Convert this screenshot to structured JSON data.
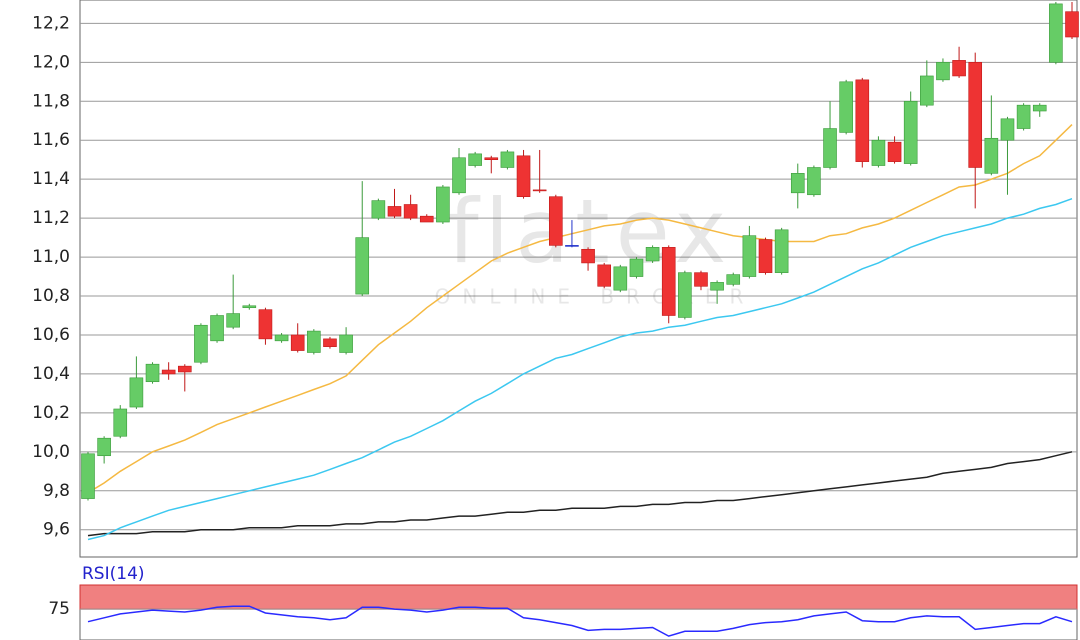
{
  "chart_data": [
    {
      "type": "candlestick",
      "watermark": "flatex",
      "watermark_sub": "ONLINE BROKER",
      "open": [
        9.76,
        9.98,
        10.08,
        10.23,
        10.36,
        10.42,
        10.44,
        10.46,
        10.57,
        10.64,
        10.74,
        10.73,
        10.57,
        10.6,
        10.51,
        10.58,
        10.51,
        10.81,
        11.2,
        11.26,
        11.27,
        11.21,
        11.18,
        11.33,
        11.47,
        11.51,
        11.46,
        11.52,
        11.345,
        11.31,
        11.06,
        11.04,
        10.96,
        10.83,
        10.9,
        10.98,
        11.05,
        10.69,
        10.92,
        10.83,
        10.86,
        10.9,
        11.09,
        10.92,
        11.33,
        11.32,
        11.46,
        11.64,
        11.91,
        11.47,
        11.59,
        11.48,
        11.78,
        11.91,
        12.01,
        12.0,
        11.43,
        11.6,
        11.66,
        11.75,
        12.0,
        12.26
      ],
      "high": [
        10.0,
        10.08,
        10.24,
        10.49,
        10.46,
        10.46,
        10.45,
        10.66,
        10.71,
        10.91,
        10.76,
        10.74,
        10.61,
        10.66,
        10.63,
        10.59,
        10.64,
        11.39,
        11.3,
        11.35,
        11.32,
        11.22,
        11.37,
        11.56,
        11.54,
        11.52,
        11.55,
        11.55,
        11.55,
        11.32,
        11.19,
        11.05,
        10.97,
        10.96,
        11.0,
        11.06,
        11.06,
        10.93,
        10.93,
        10.88,
        10.92,
        11.16,
        11.1,
        11.15,
        11.48,
        11.47,
        11.8,
        11.91,
        11.92,
        11.62,
        11.62,
        11.85,
        12.01,
        12.02,
        12.08,
        12.05,
        11.83,
        11.72,
        11.79,
        11.79,
        12.31,
        12.31
      ],
      "low": [
        9.75,
        9.94,
        10.07,
        10.22,
        10.35,
        10.37,
        10.31,
        10.45,
        10.56,
        10.63,
        10.73,
        10.55,
        10.56,
        10.51,
        10.5,
        10.53,
        10.5,
        10.8,
        11.19,
        11.2,
        11.19,
        11.18,
        11.17,
        11.32,
        11.46,
        11.43,
        11.45,
        11.3,
        11.33,
        11.05,
        11.05,
        10.93,
        10.84,
        10.82,
        10.89,
        10.97,
        10.66,
        10.68,
        10.83,
        10.76,
        10.85,
        10.89,
        10.91,
        10.91,
        11.25,
        11.31,
        11.45,
        11.63,
        11.46,
        11.46,
        11.48,
        11.47,
        11.77,
        11.9,
        11.92,
        11.25,
        11.42,
        11.32,
        11.65,
        11.72,
        11.99,
        12.12
      ],
      "close": [
        9.99,
        10.07,
        10.22,
        10.38,
        10.45,
        10.4,
        10.41,
        10.65,
        10.7,
        10.71,
        10.75,
        10.58,
        10.6,
        10.52,
        10.62,
        10.54,
        10.6,
        11.1,
        11.29,
        11.21,
        11.2,
        11.18,
        11.36,
        11.51,
        11.53,
        11.5,
        11.54,
        11.31,
        11.34,
        11.06,
        11.06,
        10.97,
        10.85,
        10.95,
        10.99,
        11.05,
        10.7,
        10.92,
        10.85,
        10.87,
        10.91,
        11.11,
        10.92,
        11.14,
        11.43,
        11.46,
        11.66,
        11.9,
        11.49,
        11.6,
        11.49,
        11.8,
        11.93,
        12.0,
        11.93,
        11.46,
        11.61,
        11.71,
        11.78,
        11.78,
        12.3,
        12.13
      ],
      "up_color": "#66cc66",
      "down_color": "#ee3333",
      "flat_color": "#2233cc",
      "overlays": [
        {
          "color": "#f5b942",
          "values": [
            9.79,
            9.84,
            9.9,
            9.95,
            10.0,
            10.03,
            10.06,
            10.1,
            10.14,
            10.17,
            10.2,
            10.23,
            10.26,
            10.29,
            10.32,
            10.35,
            10.39,
            10.47,
            10.55,
            10.61,
            10.67,
            10.74,
            10.8,
            10.86,
            10.92,
            10.98,
            11.02,
            11.05,
            11.08,
            11.1,
            11.12,
            11.14,
            11.16,
            11.17,
            11.19,
            11.2,
            11.19,
            11.17,
            11.15,
            11.13,
            11.11,
            11.1,
            11.09,
            11.08,
            11.08,
            11.08,
            11.11,
            11.12,
            11.15,
            11.17,
            11.2,
            11.24,
            11.28,
            11.32,
            11.36,
            11.37,
            11.4,
            11.43,
            11.48,
            11.52,
            11.6,
            11.68
          ]
        },
        {
          "color": "#3cc8f0",
          "values": [
            9.55,
            9.57,
            9.61,
            9.64,
            9.67,
            9.7,
            9.72,
            9.74,
            9.76,
            9.78,
            9.8,
            9.82,
            9.84,
            9.86,
            9.88,
            9.91,
            9.94,
            9.97,
            10.01,
            10.05,
            10.08,
            10.12,
            10.16,
            10.21,
            10.26,
            10.3,
            10.35,
            10.4,
            10.44,
            10.48,
            10.5,
            10.53,
            10.56,
            10.59,
            10.61,
            10.62,
            10.64,
            10.65,
            10.67,
            10.69,
            10.7,
            10.72,
            10.74,
            10.76,
            10.79,
            10.82,
            10.86,
            10.9,
            10.94,
            10.97,
            11.01,
            11.05,
            11.08,
            11.11,
            11.13,
            11.15,
            11.17,
            11.2,
            11.22,
            11.25,
            11.27,
            11.3
          ]
        },
        {
          "color": "#222222",
          "values": [
            9.57,
            9.58,
            9.58,
            9.58,
            9.59,
            9.59,
            9.59,
            9.6,
            9.6,
            9.6,
            9.61,
            9.61,
            9.61,
            9.62,
            9.62,
            9.62,
            9.63,
            9.63,
            9.64,
            9.64,
            9.65,
            9.65,
            9.66,
            9.67,
            9.67,
            9.68,
            9.69,
            9.69,
            9.7,
            9.7,
            9.71,
            9.71,
            9.71,
            9.72,
            9.72,
            9.73,
            9.73,
            9.74,
            9.74,
            9.75,
            9.75,
            9.76,
            9.77,
            9.78,
            9.79,
            9.8,
            9.81,
            9.82,
            9.83,
            9.84,
            9.85,
            9.86,
            9.87,
            9.89,
            9.9,
            9.91,
            9.92,
            9.94,
            9.95,
            9.96,
            9.98,
            10.0
          ]
        }
      ],
      "ylim": [
        9.46,
        12.32
      ],
      "yticks": [
        {
          "value": 9.6,
          "label": "9,6"
        },
        {
          "value": 9.8,
          "label": "9,8"
        },
        {
          "value": 10.0,
          "label": "10,0"
        },
        {
          "value": 10.2,
          "label": "10,2"
        },
        {
          "value": 10.4,
          "label": "10,4"
        },
        {
          "value": 10.6,
          "label": "10,6"
        },
        {
          "value": 10.8,
          "label": "10,8"
        },
        {
          "value": 11.0,
          "label": "11,0"
        },
        {
          "value": 11.2,
          "label": "11,2"
        },
        {
          "value": 11.4,
          "label": "11,4"
        },
        {
          "value": 11.6,
          "label": "11,6"
        },
        {
          "value": 11.8,
          "label": "11,8"
        },
        {
          "value": 12.0,
          "label": "12,0"
        },
        {
          "value": 12.2,
          "label": "12,2"
        }
      ],
      "grid": true
    },
    {
      "type": "line",
      "title": "RSI(14)",
      "color": "#2a2aff",
      "values": [
        62,
        66,
        70,
        72,
        74,
        73,
        72,
        74,
        77,
        78,
        78,
        71,
        69,
        67,
        66,
        64,
        66,
        77,
        77,
        75,
        74,
        72,
        74,
        77,
        77,
        76,
        76,
        66,
        64,
        61,
        58,
        53,
        54,
        54,
        55,
        56,
        47,
        52,
        52,
        52,
        55,
        59,
        61,
        62,
        64,
        68,
        70,
        72,
        63,
        62,
        62,
        66,
        68,
        67,
        67,
        54,
        56,
        58,
        60,
        60,
        67,
        62
      ],
      "band": [
        75,
        100
      ],
      "band_color": "#f08080",
      "ylim": [
        43,
        100
      ],
      "yticks": [
        75
      ],
      "grid": true
    }
  ]
}
